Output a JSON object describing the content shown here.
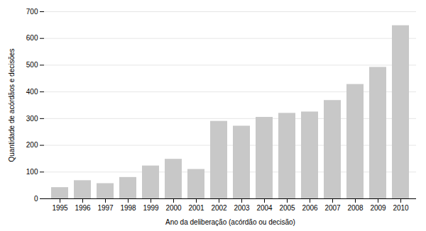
{
  "chart_data": {
    "type": "bar",
    "categories": [
      "1995",
      "1996",
      "1997",
      "1998",
      "1999",
      "2000",
      "2001",
      "2002",
      "2003",
      "2004",
      "2005",
      "2006",
      "2007",
      "2008",
      "2009",
      "2010"
    ],
    "values": [
      42,
      68,
      57,
      80,
      123,
      148,
      110,
      290,
      272,
      305,
      320,
      325,
      368,
      428,
      492,
      648
    ],
    "color": "#c8c8c8",
    "xlabel": "Ano da deliberação (acórdão ou decisão)",
    "ylabel": "Quantidade de acórdãos e decisões",
    "ylim": [
      0,
      700
    ],
    "yticks": [
      0,
      100,
      200,
      300,
      400,
      500,
      600,
      700
    ],
    "grid": true
  }
}
